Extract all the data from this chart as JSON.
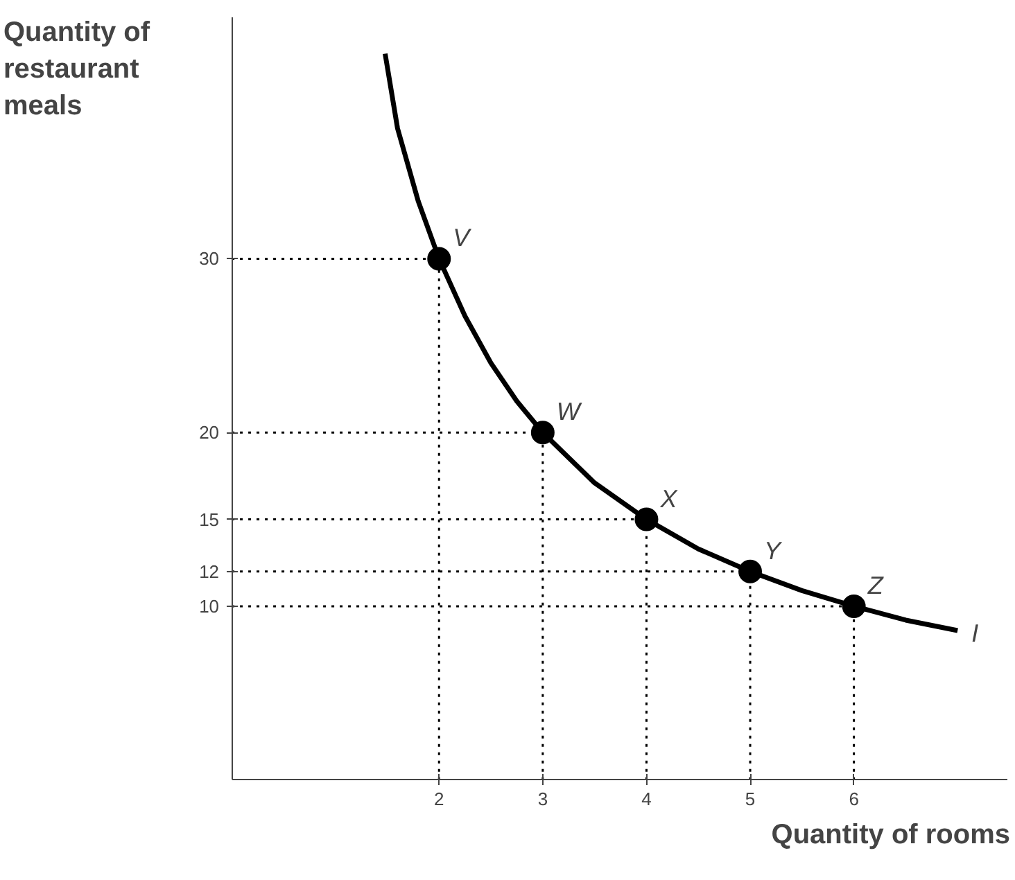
{
  "chart_data": {
    "type": "line",
    "xlabel": "Quantity of rooms",
    "ylabel": "Quantity of\nrestaurant\nmeals",
    "xlim": [
      0,
      7.48
    ],
    "ylim": [
      0,
      43.9
    ],
    "xticks": [
      2,
      3,
      4,
      5,
      6
    ],
    "yticks": [
      10,
      12,
      15,
      20,
      30
    ],
    "grid": false,
    "series": [
      {
        "name": "I",
        "color": "#000000",
        "marker": "none",
        "line_style": "solid",
        "x": [
          1.48,
          1.6,
          1.8,
          2,
          2.25,
          2.5,
          2.75,
          3,
          3.5,
          4,
          4.5,
          5,
          5.5,
          6,
          6.5,
          7
        ],
        "values": [
          41.8,
          37.5,
          33.3,
          30,
          26.7,
          24,
          21.8,
          20,
          17.1,
          15,
          13.3,
          12,
          10.9,
          10,
          9.2,
          8.6
        ]
      },
      {
        "type": "scatter",
        "color": "#000000",
        "marker": "circle",
        "x": [
          2,
          3,
          4,
          5,
          6
        ],
        "values": [
          30,
          20,
          15,
          12,
          10
        ]
      }
    ],
    "annotations": [
      {
        "text": "V",
        "x": 2,
        "y": 30
      },
      {
        "text": "W",
        "x": 3,
        "y": 20
      },
      {
        "text": "X",
        "x": 4,
        "y": 15
      },
      {
        "text": "Y",
        "x": 5,
        "y": 12
      },
      {
        "text": "Z",
        "x": 6,
        "y": 10
      }
    ],
    "ref_lines": [
      {
        "axis": "y",
        "value": 30,
        "line_style": "dotted",
        "color": "#000000"
      },
      {
        "axis": "y",
        "value": 20,
        "line_style": "dotted",
        "color": "#000000"
      },
      {
        "axis": "y",
        "value": 15,
        "line_style": "dotted",
        "color": "#000000"
      },
      {
        "axis": "y",
        "value": 12,
        "line_style": "dotted",
        "color": "#000000"
      },
      {
        "axis": "y",
        "value": 10,
        "line_style": "dotted",
        "color": "#000000"
      },
      {
        "axis": "x",
        "value": 2,
        "line_style": "dotted",
        "color": "#000000"
      },
      {
        "axis": "x",
        "value": 3,
        "line_style": "dotted",
        "color": "#000000"
      },
      {
        "axis": "x",
        "value": 4,
        "line_style": "dotted",
        "color": "#000000"
      },
      {
        "axis": "x",
        "value": 5,
        "line_style": "dotted",
        "color": "#000000"
      },
      {
        "axis": "x",
        "value": 6,
        "line_style": "dotted",
        "color": "#000000"
      }
    ]
  }
}
